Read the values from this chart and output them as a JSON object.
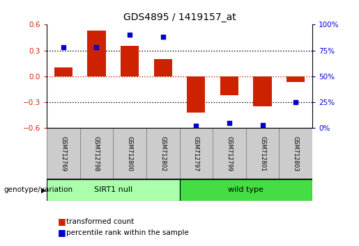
{
  "title": "GDS4895 / 1419157_at",
  "samples": [
    "GSM712769",
    "GSM712798",
    "GSM712800",
    "GSM712802",
    "GSM712797",
    "GSM712799",
    "GSM712801",
    "GSM712803"
  ],
  "bar_values": [
    0.1,
    0.53,
    0.35,
    0.2,
    -0.42,
    -0.22,
    -0.35,
    -0.07
  ],
  "percentile_values": [
    78,
    78,
    90,
    88,
    2,
    5,
    3,
    25
  ],
  "bar_color": "#cc2200",
  "dot_color": "#0000cc",
  "ylim_left": [
    -0.6,
    0.6
  ],
  "ylim_right": [
    0,
    100
  ],
  "yticks_left": [
    -0.6,
    -0.3,
    0.0,
    0.3,
    0.6
  ],
  "yticks_right": [
    0,
    25,
    50,
    75,
    100
  ],
  "hlines_vals": [
    0.3,
    0.0,
    -0.3
  ],
  "group1_label": "SIRT1 null",
  "group2_label": "wild type",
  "group1_color": "#aaffaa",
  "group2_color": "#44dd44",
  "group1_indices": [
    0,
    1,
    2,
    3
  ],
  "group2_indices": [
    4,
    5,
    6,
    7
  ],
  "group_row_label": "genotype/variation",
  "legend_bar_label": "transformed count",
  "legend_dot_label": "percentile rank within the sample",
  "background_color": "#ffffff",
  "bar_color_red": "#cc2200",
  "dot_color_blue": "#0000cc",
  "bar_width": 0.55,
  "sample_box_color": "#cccccc"
}
